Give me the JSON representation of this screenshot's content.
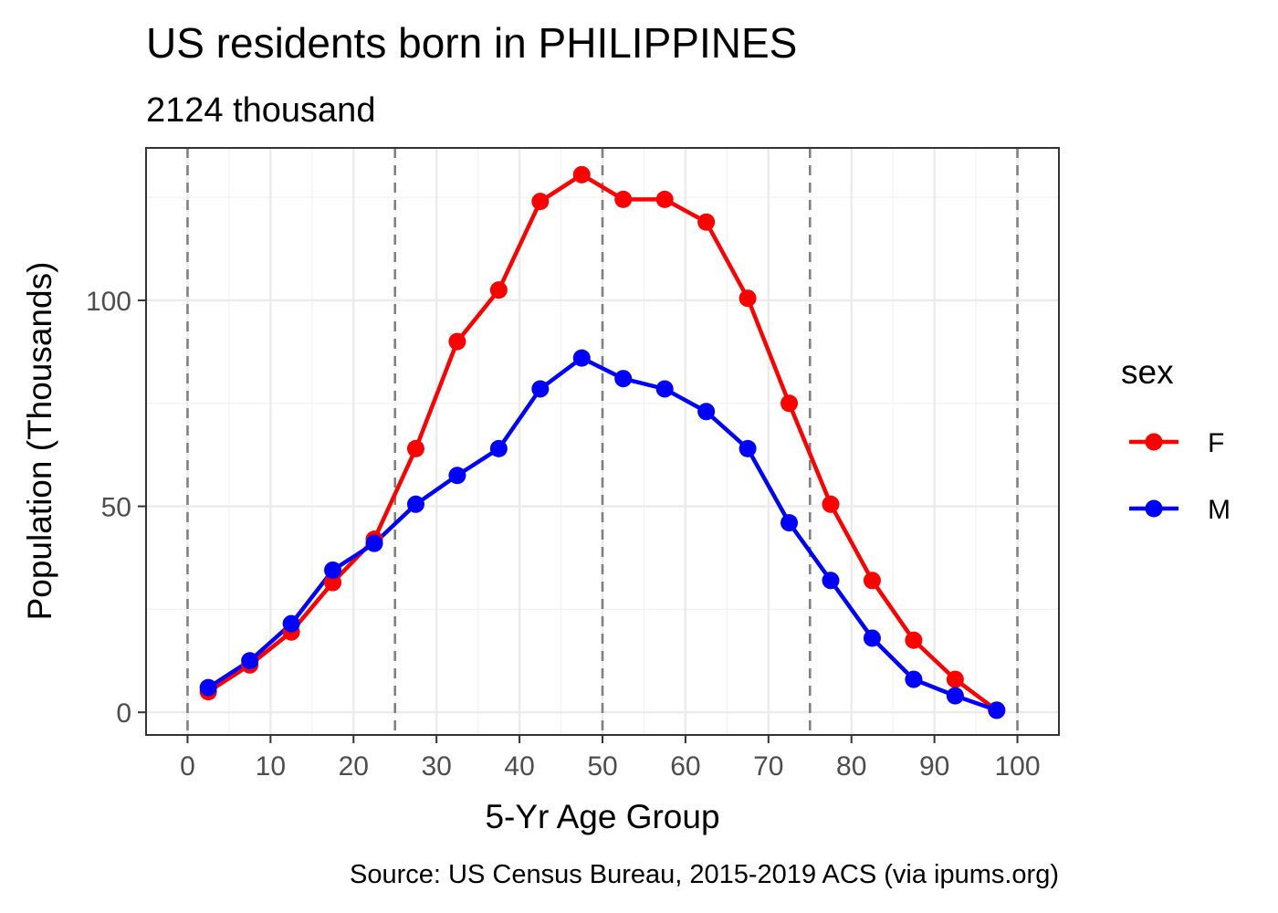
{
  "chart_data": {
    "type": "line",
    "title": "US residents born in PHILIPPINES",
    "subtitle": "2124 thousand",
    "xlabel": "5-Yr Age Group",
    "ylabel": "Population (Thousands)",
    "caption": "Source: US Census Bureau, 2015-2019 ACS (via ipums.org)",
    "xlim": [
      -5,
      105
    ],
    "ylim": [
      -5.5,
      137
    ],
    "x_ticks": [
      0,
      10,
      20,
      30,
      40,
      50,
      60,
      70,
      80,
      90,
      100
    ],
    "y_ticks": [
      0,
      50,
      100
    ],
    "vlines": [
      0,
      25,
      50,
      75,
      100
    ],
    "grid": true,
    "legend": {
      "title": "sex",
      "position": "right"
    },
    "x": [
      2.5,
      7.5,
      12.5,
      17.5,
      22.5,
      27.5,
      32.5,
      37.5,
      42.5,
      47.5,
      52.5,
      57.5,
      62.5,
      67.5,
      72.5,
      77.5,
      82.5,
      87.5,
      92.5,
      97.5
    ],
    "series": [
      {
        "name": "F",
        "color": "#ff0000",
        "values": [
          5.0,
          11.5,
          19.5,
          31.5,
          42.0,
          64.0,
          90.0,
          102.5,
          124.0,
          130.5,
          124.5,
          124.5,
          119.0,
          100.5,
          75.0,
          50.5,
          32.0,
          17.5,
          8.0,
          0.5
        ]
      },
      {
        "name": "M",
        "color": "#0000ff",
        "values": [
          6.0,
          12.5,
          21.5,
          34.5,
          41.0,
          50.5,
          57.5,
          64.0,
          78.5,
          86.0,
          81.0,
          78.5,
          73.0,
          64.0,
          46.0,
          32.0,
          18.0,
          8.0,
          4.0,
          0.5
        ]
      }
    ]
  }
}
